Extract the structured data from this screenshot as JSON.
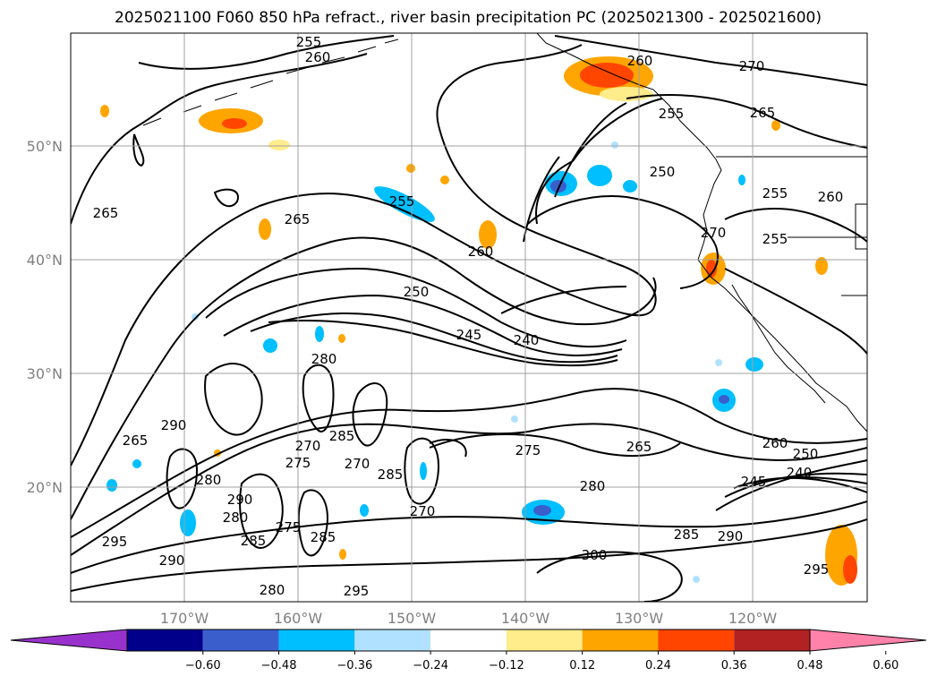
{
  "title": "2025021100 F060 850 hPa refract., river basin precipitation PC (2025021300 - 2025021600)",
  "axes": {
    "lat_labels": [
      "50°N",
      "40°N",
      "30°N",
      "20°N"
    ],
    "lon_labels": [
      "170°W",
      "160°W",
      "150°W",
      "140°W",
      "130°W",
      "120°W"
    ]
  },
  "colorbar": {
    "ticks": [
      "−0.60",
      "−0.48",
      "−0.36",
      "−0.24",
      "−0.12",
      "0.12",
      "0.24",
      "0.36",
      "0.48",
      "0.60"
    ],
    "colors": [
      "#9932cc",
      "#00008b",
      "#3a5fcd",
      "#00bfff",
      "#b0e2ff",
      "#ffffff",
      "#ffec8b",
      "#ffa500",
      "#ff4500",
      "#b22222",
      "#ff82ab"
    ]
  },
  "contour_labels": [
    "255",
    "260",
    "260",
    "270",
    "255",
    "265",
    "250",
    "255",
    "260",
    "265",
    "270",
    "255",
    "255",
    "265",
    "260",
    "250",
    "245",
    "240",
    "280",
    "265",
    "290",
    "265",
    "260",
    "250",
    "245",
    "240",
    "275",
    "285",
    "270",
    "285",
    "270",
    "275",
    "285",
    "280",
    "290",
    "280",
    "285",
    "270",
    "275",
    "285",
    "290",
    "280",
    "290",
    "300",
    "295",
    "280",
    "295",
    "295"
  ]
}
